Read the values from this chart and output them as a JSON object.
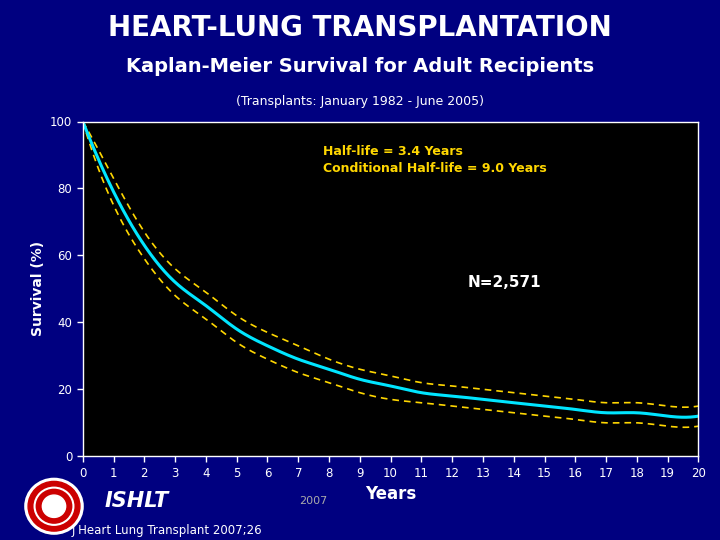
{
  "title1": "HEART-LUNG TRANSPLANTATION",
  "title2": "Kaplan-Meier Survival for Adult Recipients",
  "subtitle": "(Transplants: January 1982 - June 2005)",
  "xlabel": "Years",
  "ylabel": "Survival (%)",
  "bg_color": "#000080",
  "plot_bg_color": "#000000",
  "title1_color": "#FFFFFF",
  "title2_color": "#FFFFFF",
  "subtitle_color": "#FFFFFF",
  "xlabel_color": "#FFFFFF",
  "ylabel_color": "#FFFFFF",
  "tick_color": "#FFFFFF",
  "annotation_text": "Half-life = 3.4 Years\nConditional Half-life = 9.0 Years",
  "annotation_color": "#FFD700",
  "n_text": "N=2,571",
  "n_color": "#FFFFFF",
  "line_color": "#00E5FF",
  "ci_color": "#FFD700",
  "xlim": [
    0,
    20
  ],
  "ylim": [
    0,
    100
  ],
  "xticks": [
    0,
    1,
    2,
    3,
    4,
    5,
    6,
    7,
    8,
    9,
    10,
    11,
    12,
    13,
    14,
    15,
    16,
    17,
    18,
    19,
    20
  ],
  "yticks": [
    0,
    20,
    40,
    60,
    80,
    100
  ],
  "footer_text1": "ISHLT",
  "footer_text2": "2007",
  "footer_text3": "J Heart Lung Transplant 2007;26",
  "survival": [
    100,
    79,
    63,
    52,
    45,
    38,
    33,
    29,
    26,
    23,
    21,
    19,
    18,
    17,
    16,
    15,
    14,
    13,
    13,
    12,
    12
  ],
  "ci_upper": [
    100,
    83,
    67,
    56,
    49,
    42,
    37,
    33,
    29,
    26,
    24,
    22,
    21,
    20,
    19,
    18,
    17,
    16,
    16,
    15,
    15
  ],
  "ci_lower": [
    100,
    75,
    59,
    48,
    41,
    34,
    29,
    25,
    22,
    19,
    17,
    16,
    15,
    14,
    13,
    12,
    11,
    10,
    10,
    9,
    9
  ]
}
